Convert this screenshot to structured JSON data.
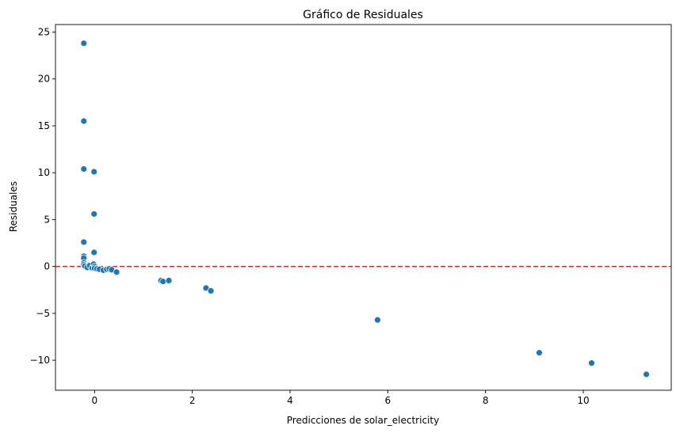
{
  "chart_data": {
    "type": "scatter",
    "title": "Gráfico de Residuales",
    "xlabel": "Predicciones de solar_electricity",
    "ylabel": "Residuales",
    "xlim": [
      -0.8,
      11.8
    ],
    "ylim": [
      -13.2,
      25.8
    ],
    "xticks": [
      0,
      2,
      4,
      6,
      8,
      10
    ],
    "xtick_labels": [
      "0",
      "2",
      "4",
      "6",
      "8",
      "10"
    ],
    "yticks": [
      -10,
      -5,
      0,
      5,
      10,
      15,
      20,
      25
    ],
    "ytick_labels": [
      "−10",
      "−5",
      "0",
      "5",
      "10",
      "15",
      "20",
      "25"
    ],
    "reference_line": {
      "y": 0,
      "style": "dashed",
      "color": "#d62728"
    },
    "marker_color": "#1f77b4",
    "grid": false,
    "points": [
      {
        "x": -0.22,
        "y": 23.8
      },
      {
        "x": -0.22,
        "y": 15.5
      },
      {
        "x": -0.22,
        "y": 10.4
      },
      {
        "x": -0.01,
        "y": 10.1
      },
      {
        "x": -0.01,
        "y": 5.6
      },
      {
        "x": -0.22,
        "y": 2.6
      },
      {
        "x": -0.01,
        "y": 1.5
      },
      {
        "x": -0.22,
        "y": 1.1
      },
      {
        "x": -0.22,
        "y": 0.9
      },
      {
        "x": -0.22,
        "y": 0.4
      },
      {
        "x": -0.22,
        "y": 0.2
      },
      {
        "x": -0.2,
        "y": 0.05
      },
      {
        "x": -0.15,
        "y": -0.1
      },
      {
        "x": -0.1,
        "y": 0.1
      },
      {
        "x": -0.05,
        "y": -0.15
      },
      {
        "x": -0.02,
        "y": 0.25
      },
      {
        "x": 0.0,
        "y": 0.0
      },
      {
        "x": 0.0,
        "y": -0.2
      },
      {
        "x": 0.05,
        "y": -0.25
      },
      {
        "x": 0.1,
        "y": -0.3
      },
      {
        "x": 0.18,
        "y": -0.4
      },
      {
        "x": 0.25,
        "y": -0.3
      },
      {
        "x": 0.3,
        "y": -0.25
      },
      {
        "x": 0.35,
        "y": -0.35
      },
      {
        "x": 0.45,
        "y": -0.6
      },
      {
        "x": 1.36,
        "y": -1.5
      },
      {
        "x": 1.4,
        "y": -1.6
      },
      {
        "x": 1.52,
        "y": -1.5
      },
      {
        "x": 2.28,
        "y": -2.3
      },
      {
        "x": 2.38,
        "y": -2.6
      },
      {
        "x": 5.79,
        "y": -5.7
      },
      {
        "x": 9.1,
        "y": -9.2
      },
      {
        "x": 10.17,
        "y": -10.3
      },
      {
        "x": 11.29,
        "y": -11.5
      }
    ]
  }
}
